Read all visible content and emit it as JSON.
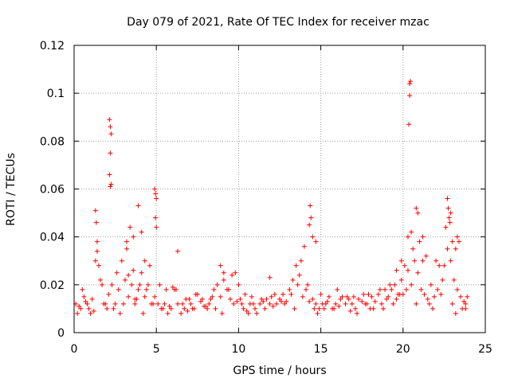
{
  "chart_data": {
    "type": "scatter",
    "title": "Day 079 of 2021, Rate Of TEC Index for receiver mzac",
    "xlabel": "GPS time / hours",
    "ylabel": "ROTI / TECUs",
    "xlim": [
      0,
      25
    ],
    "ylim": [
      0,
      0.12
    ],
    "xticks": [
      0,
      5,
      10,
      15,
      20,
      25
    ],
    "yticks": [
      0,
      0.02,
      0.04,
      0.06,
      0.08,
      0.1,
      0.12
    ],
    "xtick_labels": [
      "0",
      "5",
      "10",
      "15",
      "20",
      "25"
    ],
    "ytick_labels": [
      "0",
      "0.02",
      "0.04",
      "0.06",
      "0.08",
      "0.1",
      "0.12"
    ],
    "grid": true,
    "marker": "+",
    "color": "#ff0000",
    "series": [
      {
        "name": "ROTI",
        "x": [
          0.1,
          0.3,
          0.5,
          0.7,
          0.9,
          1.1,
          1.3,
          1.5,
          1.7,
          1.9,
          2.1,
          2.3,
          2.5,
          2.7,
          2.9,
          3.1,
          3.3,
          3.5,
          3.7,
          3.9,
          4.1,
          4.3,
          4.5,
          4.7,
          4.9,
          5.1,
          5.3,
          5.5,
          5.7,
          5.9,
          6.1,
          6.3,
          6.5,
          6.7,
          6.9,
          7.1,
          7.3,
          7.5,
          7.7,
          7.9,
          8.1,
          8.3,
          8.5,
          8.7,
          8.9,
          9.1,
          9.3,
          9.5,
          9.7,
          9.9,
          10.1,
          10.3,
          10.5,
          10.7,
          10.9,
          11.1,
          11.3,
          11.5,
          11.7,
          11.9,
          12.1,
          12.3,
          12.5,
          12.7,
          12.9,
          13.1,
          13.3,
          13.5,
          13.7,
          13.9,
          14.1,
          14.3,
          14.5,
          14.7,
          14.9,
          15.1,
          15.3,
          15.5,
          15.7,
          15.9,
          16.1,
          16.3,
          16.5,
          16.7,
          16.9,
          17.1,
          17.3,
          17.5,
          17.7,
          17.9,
          18.1,
          18.3,
          18.5,
          18.7,
          18.9,
          19.1,
          19.3,
          19.5,
          19.7,
          19.9,
          20.1,
          20.3,
          20.5,
          20.7,
          20.9,
          21.1,
          21.3,
          21.5,
          21.7,
          21.9,
          22.1,
          22.3,
          22.5,
          22.7,
          22.9,
          23.1,
          23.3,
          23.5,
          23.7,
          23.9,
          1.3,
          1.35,
          1.4,
          2.15,
          2.2,
          2.25,
          2.2,
          2.15,
          2.25,
          2.2,
          3.2,
          3.4,
          3.6,
          3.9,
          4.1,
          4.3,
          4.9,
          4.95,
          5.0,
          4.95,
          5.0,
          6.0,
          6.3,
          8.9,
          9.1,
          11.9,
          13.8,
          14.0,
          14.3,
          14.35,
          14.4,
          14.5,
          14.7,
          19.6,
          19.9,
          20.3,
          20.35,
          20.4,
          20.45,
          20.4,
          20.5,
          20.8,
          20.9,
          21.0,
          21.2,
          21.4,
          22.6,
          22.7,
          22.75,
          22.8,
          22.85,
          22.9,
          23.0,
          23.2,
          23.3,
          23.4,
          0.2,
          0.6,
          1.0,
          1.6,
          1.8,
          2.4,
          2.6,
          3.0,
          3.3,
          3.7,
          4.0,
          4.4,
          4.6,
          5.2,
          5.6,
          6.6,
          7.0,
          7.4,
          8.0,
          8.4,
          9.4,
          9.6,
          10.0,
          10.4,
          10.8,
          11.4,
          12.0,
          12.6,
          13.2,
          13.6,
          14.6,
          15.0,
          15.4,
          16.0,
          16.6,
          17.0,
          17.6,
          18.0,
          18.6,
          19.2,
          19.4,
          19.8,
          20.2,
          20.6,
          21.6,
          22.0,
          22.4,
          23.6,
          23.8,
          0.4,
          0.8,
          1.2,
          1.4,
          2.0,
          2.8,
          3.2,
          3.6,
          3.8,
          4.2,
          4.8,
          5.4,
          5.8,
          6.2,
          6.8,
          7.2,
          7.8,
          8.2,
          8.6,
          9.0,
          9.8,
          10.2,
          10.6,
          11.0,
          11.6,
          12.2,
          12.8,
          13.4,
          14.2,
          14.8,
          15.2,
          15.8,
          16.2,
          16.8,
          17.2,
          17.8,
          18.2,
          18.8,
          19.0,
          19.6,
          20.0,
          20.8,
          21.2,
          21.8,
          22.2,
          23.0,
          23.2,
          23.8
        ],
        "y": [
          0.012,
          0.011,
          0.018,
          0.013,
          0.01,
          0.014,
          0.03,
          0.028,
          0.02,
          0.012,
          0.016,
          0.02,
          0.012,
          0.018,
          0.03,
          0.022,
          0.015,
          0.02,
          0.012,
          0.018,
          0.025,
          0.015,
          0.02,
          0.012,
          0.015,
          0.012,
          0.01,
          0.012,
          0.008,
          0.01,
          0.018,
          0.012,
          0.008,
          0.01,
          0.009,
          0.012,
          0.01,
          0.016,
          0.013,
          0.011,
          0.01,
          0.014,
          0.018,
          0.02,
          0.015,
          0.022,
          0.018,
          0.014,
          0.012,
          0.013,
          0.014,
          0.01,
          0.009,
          0.012,
          0.012,
          0.008,
          0.012,
          0.013,
          0.014,
          0.012,
          0.011,
          0.012,
          0.014,
          0.016,
          0.013,
          0.018,
          0.022,
          0.028,
          0.024,
          0.015,
          0.018,
          0.013,
          0.014,
          0.012,
          0.01,
          0.012,
          0.012,
          0.015,
          0.01,
          0.012,
          0.011,
          0.015,
          0.012,
          0.014,
          0.012,
          0.01,
          0.014,
          0.013,
          0.012,
          0.016,
          0.015,
          0.013,
          0.016,
          0.012,
          0.018,
          0.015,
          0.018,
          0.02,
          0.016,
          0.022,
          0.028,
          0.026,
          0.02,
          0.03,
          0.025,
          0.018,
          0.016,
          0.014,
          0.02,
          0.015,
          0.018,
          0.016,
          0.028,
          0.035,
          0.03,
          0.022,
          0.018,
          0.015,
          0.013,
          0.015,
          0.051,
          0.046,
          0.038,
          0.089,
          0.086,
          0.083,
          0.075,
          0.066,
          0.062,
          0.061,
          0.038,
          0.044,
          0.04,
          0.053,
          0.042,
          0.03,
          0.06,
          0.058,
          0.056,
          0.048,
          0.044,
          0.019,
          0.034,
          0.028,
          0.025,
          0.023,
          0.03,
          0.036,
          0.045,
          0.053,
          0.048,
          0.04,
          0.038,
          0.026,
          0.03,
          0.04,
          0.087,
          0.104,
          0.105,
          0.099,
          0.042,
          0.052,
          0.05,
          0.038,
          0.04,
          0.032,
          0.044,
          0.056,
          0.052,
          0.048,
          0.046,
          0.05,
          0.038,
          0.035,
          0.04,
          0.038,
          0.008,
          0.015,
          0.008,
          0.022,
          0.012,
          0.01,
          0.025,
          0.012,
          0.024,
          0.014,
          0.02,
          0.018,
          0.028,
          0.02,
          0.018,
          0.012,
          0.014,
          0.016,
          0.011,
          0.015,
          0.018,
          0.024,
          0.02,
          0.016,
          0.015,
          0.014,
          0.015,
          0.013,
          0.016,
          0.02,
          0.01,
          0.016,
          0.013,
          0.018,
          0.015,
          0.015,
          0.016,
          0.01,
          0.018,
          0.02,
          0.012,
          0.016,
          0.018,
          0.035,
          0.012,
          0.03,
          0.022,
          0.01,
          0.012,
          0.01,
          0.012,
          0.009,
          0.034,
          0.01,
          0.008,
          0.035,
          0.026,
          0.014,
          0.008,
          0.012,
          0.01,
          0.011,
          0.018,
          0.014,
          0.01,
          0.014,
          0.012,
          0.01,
          0.008,
          0.025,
          0.012,
          0.008,
          0.01,
          0.01,
          0.016,
          0.012,
          0.01,
          0.02,
          0.008,
          0.01,
          0.01,
          0.014,
          0.009,
          0.008,
          0.012,
          0.01,
          0.01,
          0.014,
          0.014,
          0.016,
          0.012,
          0.03,
          0.01,
          0.028,
          0.012,
          0.008,
          0.01
        ]
      }
    ]
  }
}
